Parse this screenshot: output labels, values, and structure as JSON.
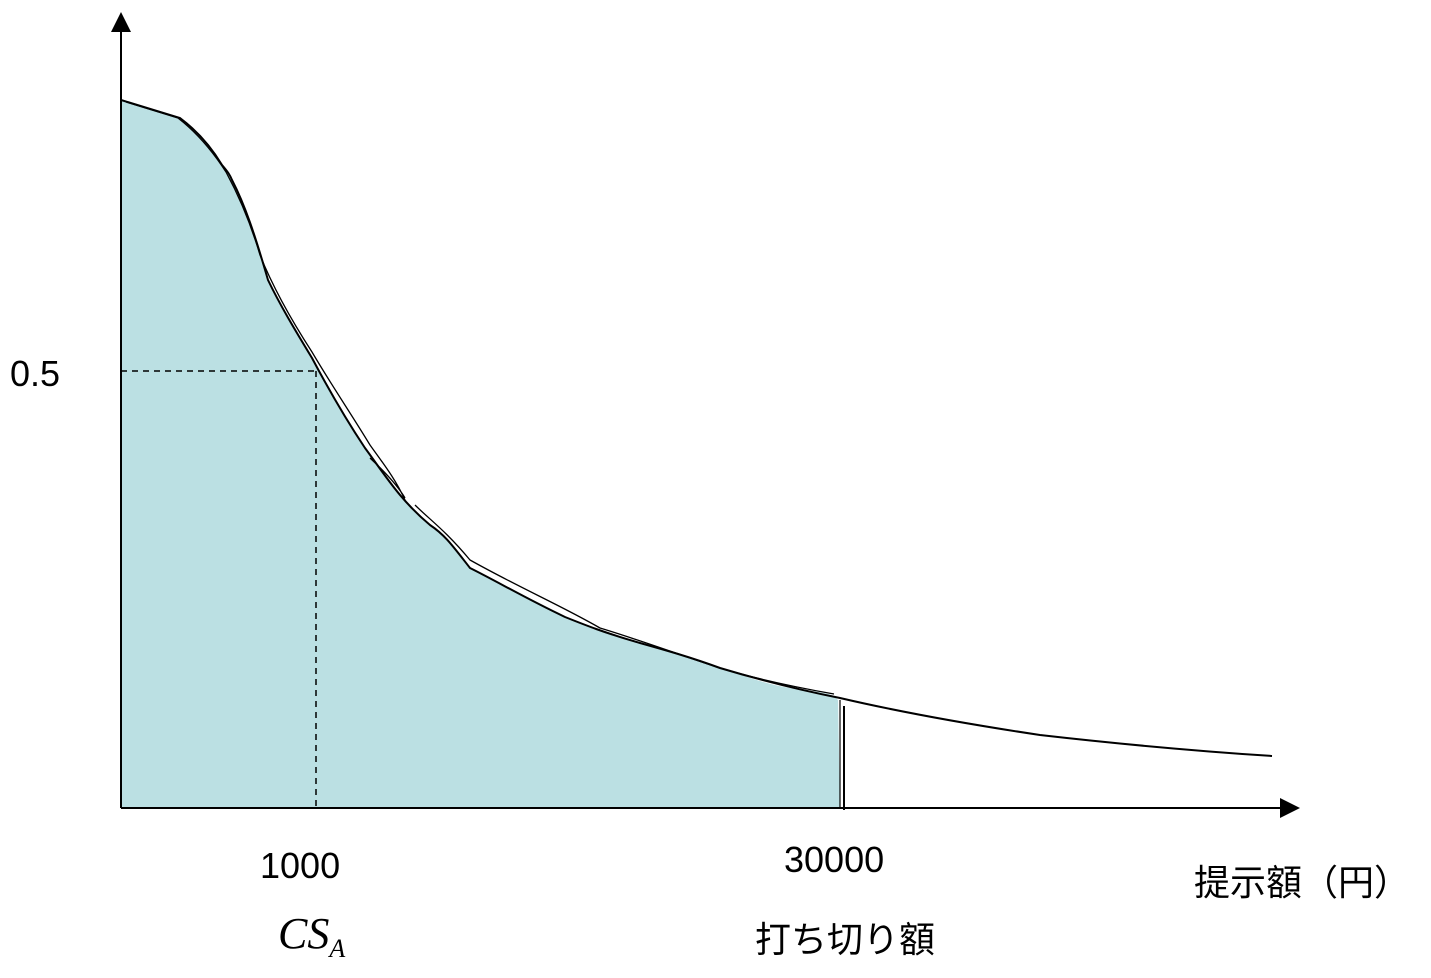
{
  "labels": {
    "y_half": "0.5",
    "x_csa_value": "1000",
    "x_cutoff_value": "30000",
    "x_axis_title": "提示額（円）",
    "csa_main": "CS",
    "csa_sub": "A",
    "cutoff_label": "打ち切り額"
  },
  "colors": {
    "fill": "#BBE0E3",
    "line": "#000000"
  }
}
